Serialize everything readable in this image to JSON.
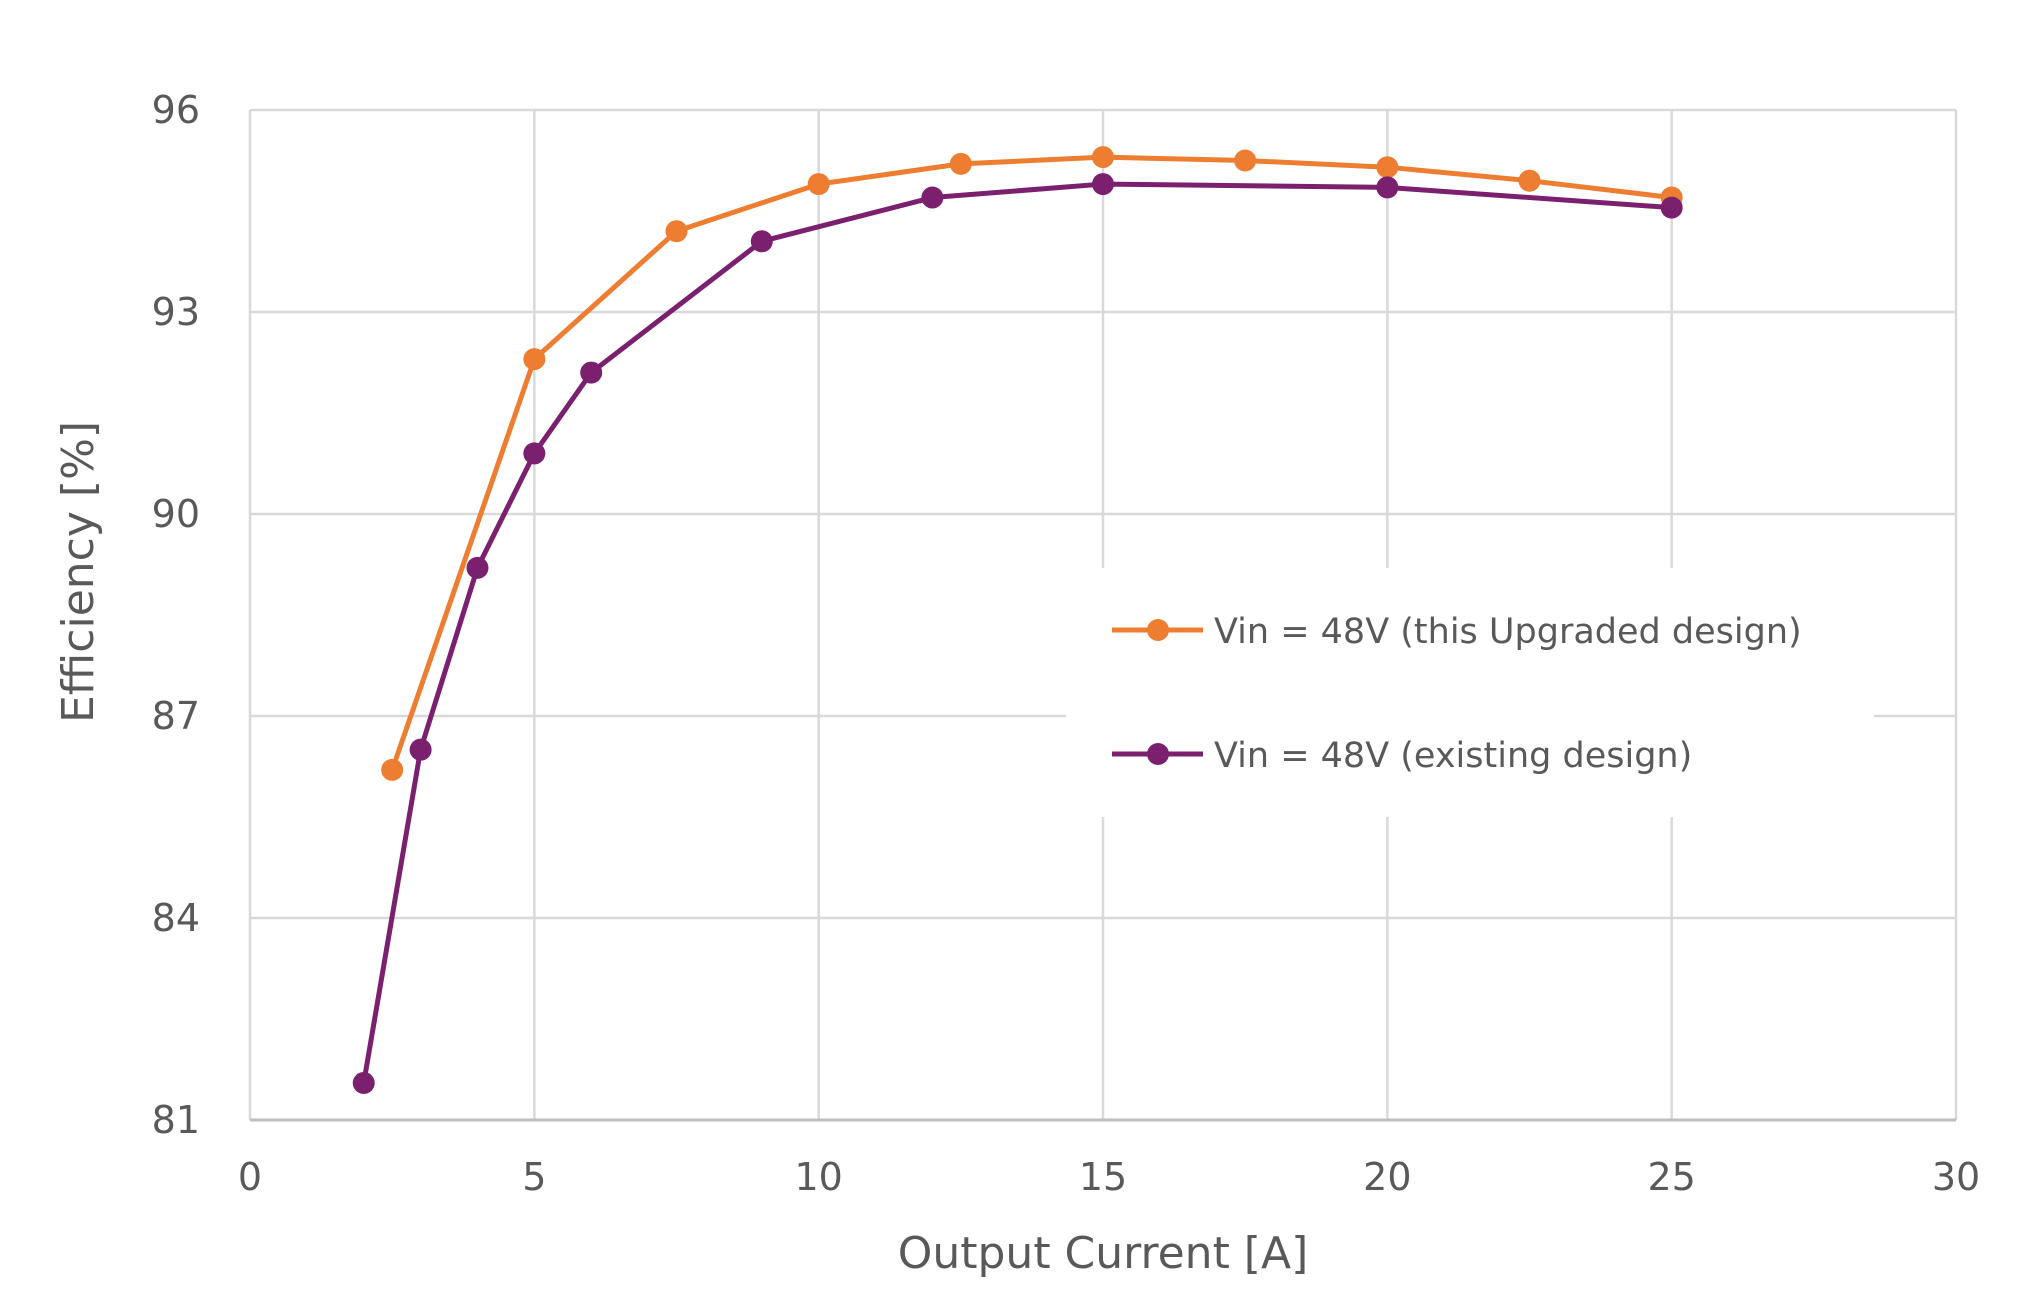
{
  "chart_data": {
    "type": "line",
    "title": "",
    "xlabel": "Output Current [A]",
    "ylabel": "Efficiency [%]",
    "xlim": [
      0,
      30
    ],
    "ylim": [
      81,
      96
    ],
    "xticks": [
      "0",
      "5",
      "10",
      "15",
      "20",
      "25",
      "30"
    ],
    "yticks": [
      "81",
      "84",
      "87",
      "90",
      "93",
      "96"
    ],
    "grid": true,
    "legend_position": "center-right",
    "series": [
      {
        "name": "Vin = 48V (this Upgraded design)",
        "color": "#ED7D31",
        "x": [
          2.5,
          5,
          7.5,
          10,
          12.5,
          15,
          17.5,
          20,
          22.5,
          25
        ],
        "y": [
          86.2,
          92.3,
          94.2,
          94.9,
          95.2,
          95.3,
          95.25,
          95.15,
          94.95,
          94.7
        ]
      },
      {
        "name": "Vin = 48V (existing design)",
        "color": "#7B1F6F",
        "x": [
          2,
          3,
          4,
          5,
          6,
          9,
          12,
          15,
          20,
          25
        ],
        "y": [
          81.55,
          86.5,
          89.2,
          90.9,
          92.1,
          94.05,
          94.7,
          94.9,
          94.85,
          94.55
        ]
      }
    ]
  }
}
